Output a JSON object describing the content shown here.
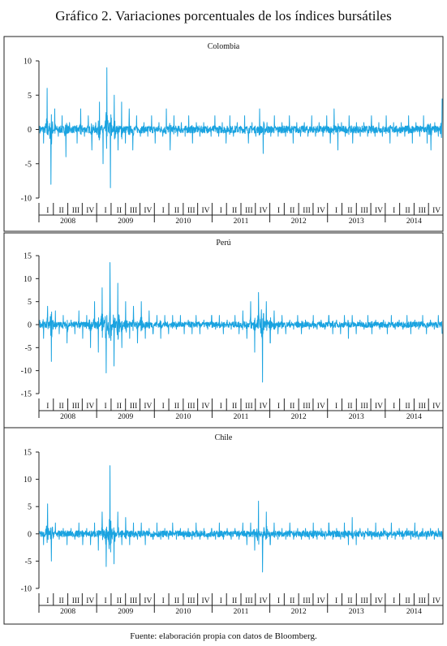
{
  "page": {
    "title": "Gráfico 2. Variaciones porcentuales de los índices bursátiles",
    "source": "Fuente: elaboración propia con datos de Bloomberg."
  },
  "colors": {
    "series": "#1aa3e0",
    "frame": "#222222"
  },
  "chart_data": [
    {
      "type": "line",
      "title": "Colombia",
      "xlabel": "",
      "ylabel": "",
      "ylim": [
        -10,
        10
      ],
      "yticks": [
        -10,
        -5,
        0,
        5,
        10
      ],
      "years": [
        "2008",
        "2009",
        "2010",
        "2011",
        "2012",
        "2013",
        "2014"
      ],
      "quarters": [
        "I",
        "II",
        "III",
        "IV"
      ],
      "grid": false,
      "series": [
        {
          "values_daily_pct_approx": "noisy daily series, amplitude ~1-2%",
          "values": [
            0.5,
            -2,
            6,
            -8,
            3,
            -1,
            2,
            -4,
            1,
            0,
            -2,
            3,
            -1,
            2,
            -3,
            1,
            4,
            -5,
            9,
            -8.5,
            5,
            -3,
            4,
            -2,
            3,
            -3,
            2,
            -1,
            1,
            -1,
            2,
            -2,
            1,
            -1,
            3,
            -3,
            2,
            -1,
            1,
            -1,
            2,
            -2,
            1,
            -1,
            1,
            0.5,
            -1,
            2,
            -1,
            1,
            -2,
            2,
            -1,
            1,
            -1,
            2,
            -2,
            1,
            -1,
            3,
            -3.5,
            1,
            -1,
            2,
            -1,
            1,
            -1,
            2,
            -2,
            1,
            -1,
            1,
            -1,
            2,
            -1,
            1,
            -1,
            2,
            -2,
            3,
            -3,
            1,
            -1,
            2,
            -2,
            1,
            -1,
            1,
            -1,
            2,
            -1,
            1,
            -1,
            2,
            -2,
            1,
            -1,
            1,
            -1,
            2,
            -2,
            1,
            -1,
            2,
            -2,
            -3,
            1,
            -1,
            4.5
          ]
        }
      ]
    },
    {
      "type": "line",
      "title": "Perú",
      "xlabel": "",
      "ylabel": "",
      "ylim": [
        -15,
        15
      ],
      "yticks": [
        -15,
        -10,
        -5,
        0,
        5,
        10,
        15
      ],
      "years": [
        "2008",
        "2009",
        "2010",
        "2011",
        "2012",
        "2013",
        "2014"
      ],
      "quarters": [
        "I",
        "II",
        "III",
        "IV"
      ],
      "grid": false,
      "series": [
        {
          "values": [
            1,
            -3,
            4,
            -8,
            3,
            -2,
            2,
            -4,
            1,
            -2,
            3,
            -3,
            2,
            -5,
            5,
            -6,
            8,
            -10.5,
            13.5,
            -9,
            9,
            -5,
            5,
            -3,
            4,
            -4,
            5,
            -3,
            3,
            -2,
            2,
            -3,
            2,
            -2,
            2,
            -1,
            2,
            -2,
            1,
            -2,
            2,
            -2,
            1,
            -1,
            2,
            -1,
            2,
            -2,
            1,
            -1,
            2,
            -2,
            3,
            -3,
            5,
            -6,
            7,
            -12.5,
            5,
            -4,
            3,
            -2,
            2,
            -2,
            1,
            -1,
            2,
            -2,
            1,
            -1,
            2,
            -1,
            1,
            -1,
            2,
            -2,
            1,
            -2,
            2,
            -3,
            2,
            -2,
            1,
            -1,
            2,
            -2,
            1,
            -1,
            1,
            -2,
            2,
            -1,
            1,
            -1,
            2,
            -2,
            1,
            -1,
            2,
            -2,
            1,
            -1,
            2,
            -2
          ]
        }
      ]
    },
    {
      "type": "line",
      "title": "Chile",
      "xlabel": "",
      "ylabel": "",
      "ylim": [
        -10,
        15
      ],
      "yticks": [
        -10,
        -5,
        0,
        5,
        10,
        15
      ],
      "years": [
        "2008",
        "2009",
        "2010",
        "2011",
        "2012",
        "2013",
        "2014"
      ],
      "quarters": [
        "I",
        "II",
        "III",
        "IV"
      ],
      "grid": false,
      "series": [
        {
          "values": [
            0.5,
            -2,
            5.5,
            -5,
            2,
            -1,
            1,
            -2,
            1,
            -1,
            2,
            -2,
            1,
            -2,
            2,
            -3,
            4,
            -6,
            12.5,
            -5.5,
            4,
            -2,
            3,
            -2,
            2,
            -1,
            2,
            -2,
            1,
            -1,
            2,
            -1,
            1,
            -1,
            2,
            -1,
            1,
            -1,
            1,
            -1,
            2,
            -1,
            1,
            -1,
            1,
            -1,
            2,
            -1,
            1,
            -1,
            1,
            -1,
            2,
            -2,
            2,
            -3,
            6,
            -7,
            4,
            -2,
            2,
            -1,
            1,
            -1,
            2,
            -1,
            1,
            -1,
            1,
            -1,
            2,
            -1,
            1,
            -1,
            2,
            -1,
            1,
            -1,
            2,
            -2,
            3,
            -2,
            1,
            -1,
            1,
            -1,
            2,
            -1,
            1,
            -1,
            2,
            -1,
            1,
            -1,
            1,
            -1,
            2,
            -1,
            1,
            -1,
            1,
            -1,
            1,
            -1
          ]
        }
      ]
    }
  ]
}
